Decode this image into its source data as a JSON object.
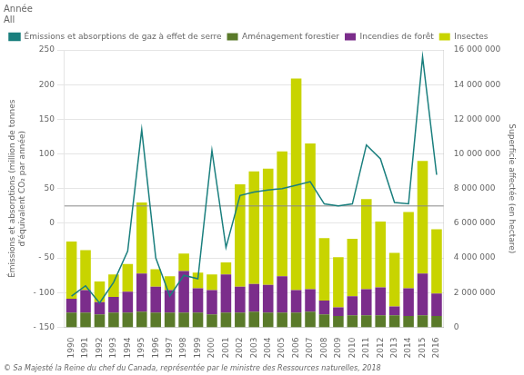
{
  "chart_data": {
    "type": "bar",
    "title": "Année\nAll",
    "annotations": [
      "© Sa Majesté la Reine du chef du Canada, représentée par le ministre des Ressources naturelles, 2018"
    ],
    "categories": [
      "1990",
      "1991",
      "1992",
      "1993",
      "1994",
      "1995",
      "1996",
      "1997",
      "1998",
      "1999",
      "2000",
      "2001",
      "2002",
      "2003",
      "2004",
      "2005",
      "2006",
      "2007",
      "2008",
      "2009",
      "2010",
      "2011",
      "2012",
      "2013",
      "2014",
      "2015",
      "2016"
    ],
    "series": [
      {
        "name": "Émissions et absorptions de gaz à effet de serre",
        "type": "line",
        "axis": "y",
        "color": "#1a7f7e",
        "values": [
          -105,
          -90,
          -115,
          -85,
          -40,
          135,
          -50,
          -105,
          -75,
          -80,
          105,
          -35,
          40,
          45,
          48,
          50,
          55,
          60,
          28,
          25,
          28,
          113,
          93,
          30,
          28,
          240,
          70
        ]
      },
      {
        "name": "Aménagement forestier",
        "type": "bar",
        "axis": "y2",
        "color": "#5a7a2a",
        "values": [
          850000,
          850000,
          750000,
          850000,
          850000,
          900000,
          850000,
          850000,
          850000,
          850000,
          750000,
          850000,
          850000,
          900000,
          850000,
          850000,
          850000,
          900000,
          750000,
          650000,
          700000,
          700000,
          700000,
          700000,
          650000,
          700000,
          650000
        ]
      },
      {
        "name": "Incendies de forêt",
        "type": "bar",
        "axis": "y2",
        "color": "#7b2d8b",
        "values": [
          800000,
          1300000,
          700000,
          900000,
          1200000,
          2200000,
          1500000,
          1300000,
          2400000,
          1400000,
          1400000,
          2200000,
          1500000,
          1600000,
          1600000,
          2100000,
          1300000,
          1300000,
          800000,
          500000,
          1100000,
          1500000,
          1600000,
          500000,
          1600000,
          2400000,
          1300000
        ]
      },
      {
        "name": "Insectes",
        "type": "bar",
        "axis": "y2",
        "color": "#c8d400",
        "values": [
          3300000,
          2300000,
          1200000,
          1300000,
          1600000,
          4100000,
          1000000,
          800000,
          1000000,
          900000,
          900000,
          700000,
          5900000,
          6500000,
          6700000,
          7200000,
          12200000,
          8400000,
          3600000,
          2900000,
          3300000,
          5200000,
          3800000,
          3100000,
          4400000,
          6500000,
          3700000
        ]
      }
    ],
    "stacked": true,
    "ylabel": "Émissions et absorptions (million de tonnes d'équivalent CO₂ par année)",
    "y2label": "Superficie affectée (en hectare)",
    "ylim": [
      -150,
      250
    ],
    "yticks": [
      {
        "value": -150,
        "label": "- 150"
      },
      {
        "value": -100,
        "label": "- 100"
      },
      {
        "value": -50,
        "label": "- 50"
      },
      0,
      50,
      100,
      150,
      200,
      250
    ],
    "y2lim": [
      0,
      16000000
    ],
    "y2ticks": [
      0,
      {
        "value": 2000000,
        "label": "2 000 000"
      },
      {
        "value": 4000000,
        "label": "4 000 000"
      },
      {
        "value": 6000000,
        "label": "6 000 000"
      },
      {
        "value": 8000000,
        "label": "8 000 000"
      },
      {
        "value": 10000000,
        "label": "10 000 000"
      },
      {
        "value": 12000000,
        "label": "12 000 000"
      },
      {
        "value": 14000000,
        "label": "14 000 000"
      },
      {
        "value": 16000000,
        "label": "16 000 000"
      }
    ],
    "grid": true,
    "legend": "top",
    "reference_lines": [
      {
        "axis": "y",
        "value": 25,
        "color": "#888888"
      }
    ]
  }
}
